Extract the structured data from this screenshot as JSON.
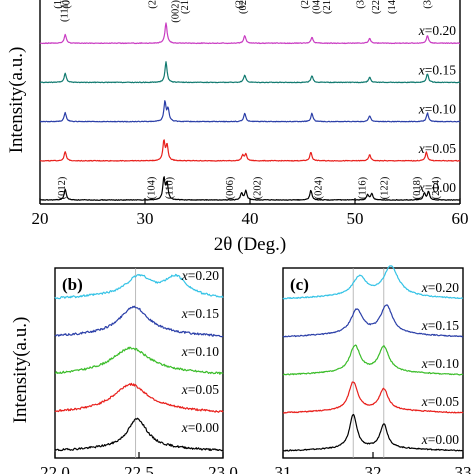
{
  "colors": {
    "x000": "#000000",
    "x005": "#e8201c",
    "x010": "#2b3fa8",
    "x015": "#117a70",
    "x020": "#c93cc2",
    "x010_b": "#3cbd2b",
    "x020_b": "#35c3e6"
  },
  "chart_data": [
    {
      "panel": "a",
      "type": "line",
      "xlabel": "2θ (Deg.)",
      "ylabel": "Intensity(a.u.)",
      "xlim": [
        20,
        60
      ],
      "xticks": [
        20,
        30,
        40,
        50,
        60
      ],
      "series": [
        {
          "name": "x=0.00",
          "color_key": "x000",
          "baseline": 0.0,
          "peaks": [
            {
              "x": 22.4,
              "h": 0.5
            },
            {
              "x": 31.8,
              "h": 1.0
            },
            {
              "x": 32.1,
              "h": 0.75
            },
            {
              "x": 39.2,
              "h": 0.32
            },
            {
              "x": 39.6,
              "h": 0.42
            },
            {
              "x": 45.8,
              "h": 0.45
            },
            {
              "x": 51.2,
              "h": 0.25
            },
            {
              "x": 51.6,
              "h": 0.3
            },
            {
              "x": 56.6,
              "h": 0.32
            },
            {
              "x": 57.0,
              "h": 0.4
            }
          ]
        },
        {
          "name": "x=0.05",
          "color_key": "x005",
          "baseline": 1.0,
          "peaks": [
            {
              "x": 22.4,
              "h": 0.42
            },
            {
              "x": 31.8,
              "h": 0.9
            },
            {
              "x": 32.1,
              "h": 0.7
            },
            {
              "x": 39.3,
              "h": 0.25
            },
            {
              "x": 39.6,
              "h": 0.3
            },
            {
              "x": 45.8,
              "h": 0.4
            },
            {
              "x": 51.4,
              "h": 0.28
            },
            {
              "x": 56.8,
              "h": 0.4
            }
          ]
        },
        {
          "name": "x=0.10",
          "color_key": "x010",
          "baseline": 2.0,
          "peaks": [
            {
              "x": 22.4,
              "h": 0.42
            },
            {
              "x": 31.9,
              "h": 0.9
            },
            {
              "x": 32.2,
              "h": 0.55
            },
            {
              "x": 39.5,
              "h": 0.38
            },
            {
              "x": 45.9,
              "h": 0.38
            },
            {
              "x": 51.4,
              "h": 0.28
            },
            {
              "x": 56.9,
              "h": 0.4
            }
          ]
        },
        {
          "name": "x=0.15",
          "color_key": "x015",
          "baseline": 3.0,
          "peaks": [
            {
              "x": 22.4,
              "h": 0.42
            },
            {
              "x": 32.0,
              "h": 0.95
            },
            {
              "x": 39.5,
              "h": 0.35
            },
            {
              "x": 45.9,
              "h": 0.3
            },
            {
              "x": 51.4,
              "h": 0.25
            },
            {
              "x": 56.9,
              "h": 0.4
            }
          ]
        },
        {
          "name": "x=0.20",
          "color_key": "x020",
          "baseline": 4.0,
          "peaks": [
            {
              "x": 22.4,
              "h": 0.4
            },
            {
              "x": 32.0,
              "h": 0.95
            },
            {
              "x": 39.5,
              "h": 0.35
            },
            {
              "x": 45.9,
              "h": 0.28
            },
            {
              "x": 51.4,
              "h": 0.22
            },
            {
              "x": 56.9,
              "h": 0.35
            }
          ]
        }
      ],
      "peak_labels_bottom": [
        {
          "x": 22.4,
          "text": "(012)"
        },
        {
          "x": 30.9,
          "text": "(104)"
        },
        {
          "x": 32.6,
          "text": "(110)"
        },
        {
          "x": 38.4,
          "text": "(006)"
        },
        {
          "x": 41.0,
          "text": "(202)"
        },
        {
          "x": 46.8,
          "text": "(024)"
        },
        {
          "x": 51.0,
          "text": "(116)"
        },
        {
          "x": 53.1,
          "text": "(122)"
        },
        {
          "x": 56.2,
          "text": "(018)"
        },
        {
          "x": 58.0,
          "text": "(214)"
        }
      ],
      "peak_labels_top": [
        {
          "x": 22.0,
          "text": "(1"
        },
        {
          "x": 22.8,
          "text": "(0"
        },
        {
          "x": 22.6,
          "text": "(111)"
        },
        {
          "x": 31.0,
          "text": "(2"
        },
        {
          "x": 33.2,
          "text": "(002)"
        },
        {
          "x": 34.1,
          "text": "(21"
        },
        {
          "x": 39.3,
          "text": "(2"
        },
        {
          "x": 39.6,
          "text": "(02"
        },
        {
          "x": 45.5,
          "text": "(2"
        },
        {
          "x": 46.6,
          "text": "(04"
        },
        {
          "x": 47.6,
          "text": "(21"
        },
        {
          "x": 50.8,
          "text": "(3"
        },
        {
          "x": 52.3,
          "text": "(22"
        },
        {
          "x": 53.8,
          "text": "(14"
        },
        {
          "x": 57.2,
          "text": "(3"
        }
      ]
    },
    {
      "panel": "b",
      "type": "line",
      "label": "(b)",
      "ylabel": "Intensity(a.u.)",
      "xlim": [
        22.0,
        23.0
      ],
      "xticks": [
        22.0,
        22.5,
        23.0
      ],
      "xtick_labels": [
        "22.0",
        "22.5",
        "23.0"
      ],
      "reference_x": 22.48,
      "series": [
        {
          "name": "x=0.00",
          "color_key": "x000",
          "baseline": 0.0,
          "peaks": [
            {
              "x": 22.49,
              "w": 0.07,
              "h": 0.85
            }
          ]
        },
        {
          "name": "x=0.05",
          "color_key": "x005",
          "baseline": 1.0,
          "peaks": [
            {
              "x": 22.45,
              "w": 0.12,
              "h": 0.75
            }
          ]
        },
        {
          "name": "x=0.10",
          "color_key": "x010_b",
          "baseline": 2.0,
          "peaks": [
            {
              "x": 22.45,
              "w": 0.13,
              "h": 0.7
            }
          ]
        },
        {
          "name": "x=0.15",
          "color_key": "x010",
          "baseline": 3.0,
          "peaks": [
            {
              "x": 22.47,
              "w": 0.1,
              "h": 0.8
            }
          ]
        },
        {
          "name": "x=0.20",
          "color_key": "x020_b",
          "baseline": 4.0,
          "peaks": [
            {
              "x": 22.5,
              "w": 0.09,
              "h": 0.55
            },
            {
              "x": 22.72,
              "w": 0.08,
              "h": 0.55
            }
          ]
        }
      ]
    },
    {
      "panel": "c",
      "type": "line",
      "label": "(c)",
      "xlim": [
        31.0,
        33.0
      ],
      "xticks": [
        31.0,
        32.0,
        33.0
      ],
      "xtick_labels": [
        "31",
        "32",
        "33"
      ],
      "reference_x": [
        31.78,
        32.12
      ],
      "series": [
        {
          "name": "x=0.00",
          "color_key": "x000",
          "baseline": 0.0,
          "peaks": [
            {
              "x": 31.78,
              "w": 0.05,
              "h": 1.6
            },
            {
              "x": 32.12,
              "w": 0.05,
              "h": 1.15
            }
          ]
        },
        {
          "name": "x=0.05",
          "color_key": "x005",
          "baseline": 1.0,
          "peaks": [
            {
              "x": 31.78,
              "w": 0.06,
              "h": 1.35
            },
            {
              "x": 32.12,
              "w": 0.06,
              "h": 1.0
            }
          ]
        },
        {
          "name": "x=0.10",
          "color_key": "x010_b",
          "baseline": 2.0,
          "peaks": [
            {
              "x": 31.8,
              "w": 0.07,
              "h": 1.25
            },
            {
              "x": 32.12,
              "w": 0.07,
              "h": 1.2
            }
          ]
        },
        {
          "name": "x=0.15",
          "color_key": "x010",
          "baseline": 3.0,
          "peaks": [
            {
              "x": 31.82,
              "w": 0.08,
              "h": 1.15
            },
            {
              "x": 32.15,
              "w": 0.08,
              "h": 1.35
            }
          ]
        },
        {
          "name": "x=0.20",
          "color_key": "x020_b",
          "baseline": 4.0,
          "peaks": [
            {
              "x": 31.85,
              "w": 0.09,
              "h": 0.9
            },
            {
              "x": 32.2,
              "w": 0.1,
              "h": 1.4
            }
          ]
        }
      ]
    }
  ]
}
